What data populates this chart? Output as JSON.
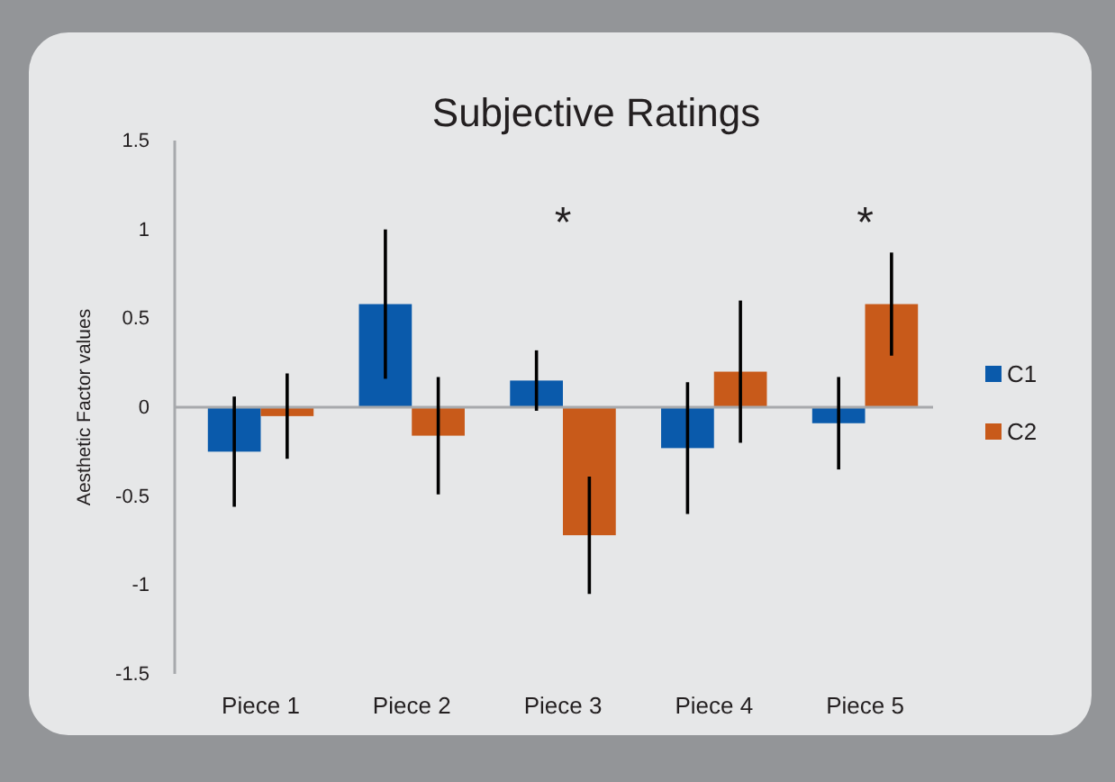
{
  "chart_data": {
    "type": "bar",
    "title": "Subjective Ratings",
    "ylabel": "Aesthetic Factor values",
    "categories": [
      "Piece 1",
      "Piece 2",
      "Piece 3",
      "Piece 4",
      "Piece 5"
    ],
    "series": [
      {
        "name": "C1",
        "color": "#0a5aab",
        "values": [
          -0.25,
          0.58,
          0.15,
          -0.23,
          -0.09
        ],
        "errors": [
          0.31,
          0.42,
          0.17,
          0.37,
          0.26
        ]
      },
      {
        "name": "C2",
        "color": "#c85a1a",
        "values": [
          -0.05,
          -0.16,
          -0.72,
          0.2,
          0.58
        ],
        "errors": [
          0.24,
          0.33,
          0.33,
          0.4,
          0.29
        ]
      }
    ],
    "ylim": [
      -1.5,
      1.5
    ],
    "yticks": [
      -1.5,
      -1,
      -0.5,
      0,
      0.5,
      1,
      1.5
    ],
    "legend": "right",
    "annotations": [
      "*",
      "*"
    ]
  }
}
